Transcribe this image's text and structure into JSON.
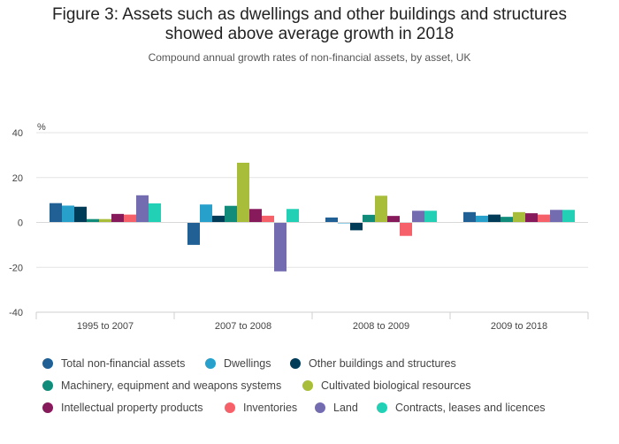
{
  "title_line1": "Figure 3: Assets such as dwellings and other buildings and structures",
  "title_line2": "showed above average growth in 2018",
  "subtitle": "Compound annual growth rates of non-financial assets, by asset, UK",
  "chart_data": {
    "type": "bar",
    "ylabel": "%",
    "ylim": [
      -40,
      40
    ],
    "yticks": [
      40,
      20,
      0,
      -20,
      -40
    ],
    "grid": true,
    "legend_position": "bottom",
    "categories": [
      "1995 to 2007",
      "2007 to 2008",
      "2008 to 2009",
      "2009 to 2018"
    ],
    "series": [
      {
        "name": "Total non-financial assets",
        "color": "#206095",
        "values": [
          8.6,
          -10,
          2.2,
          4.6
        ]
      },
      {
        "name": "Dwellings",
        "color": "#27a0cc",
        "values": [
          7.5,
          8.0,
          -0.4,
          3.0
        ]
      },
      {
        "name": "Other buildings and structures",
        "color": "#003c57",
        "values": [
          7.0,
          3.0,
          -3.5,
          3.5
        ]
      },
      {
        "name": "Machinery, equipment and weapons systems",
        "color": "#118c7b",
        "values": [
          1.5,
          7.4,
          3.4,
          2.5
        ]
      },
      {
        "name": "Cultivated biological resources",
        "color": "#a8bd3a",
        "values": [
          1.5,
          26.6,
          11.9,
          4.6
        ]
      },
      {
        "name": "Intellectual property products",
        "color": "#871a5b",
        "values": [
          3.8,
          6.0,
          2.9,
          4.1
        ]
      },
      {
        "name": "Inventories",
        "color": "#f66068",
        "values": [
          3.5,
          3.0,
          -6.0,
          3.5
        ]
      },
      {
        "name": "Land",
        "color": "#746cb1",
        "values": [
          12.1,
          -21.8,
          5.2,
          5.6
        ]
      },
      {
        "name": "Contracts, leases and licences",
        "color": "#22d0b6",
        "values": [
          8.5,
          6.0,
          5.2,
          5.6
        ]
      }
    ]
  }
}
